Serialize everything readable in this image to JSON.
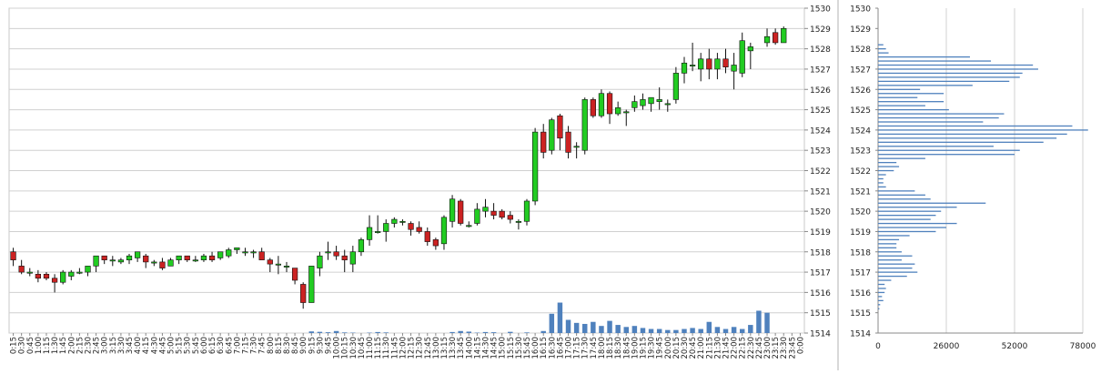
{
  "chart_data": [
    {
      "type": "candlestick",
      "ylim": [
        1514,
        1530
      ],
      "y_ticks": [
        1514,
        1515,
        1516,
        1517,
        1518,
        1519,
        1520,
        1521,
        1522,
        1523,
        1524,
        1525,
        1526,
        1527,
        1528,
        1529,
        1530
      ],
      "grid": "horizontal",
      "colors": {
        "up": "#22cc22",
        "down": "#cc2222",
        "wick": "#111111",
        "volume": "#4f81bd",
        "grid": "#d0d0d0"
      },
      "x_labels": [
        "0:15",
        "0:30",
        "0:45",
        "1:00",
        "1:15",
        "1:30",
        "1:45",
        "2:00",
        "2:15",
        "2:30",
        "2:45",
        "3:00",
        "3:15",
        "3:30",
        "3:45",
        "4:00",
        "4:15",
        "4:30",
        "4:45",
        "5:00",
        "5:15",
        "5:30",
        "5:45",
        "6:00",
        "6:15",
        "6:30",
        "6:45",
        "7:00",
        "7:15",
        "7:30",
        "7:45",
        "8:00",
        "8:15",
        "8:30",
        "8:45",
        "9:00",
        "9:15",
        "9:30",
        "9:45",
        "10:00",
        "10:15",
        "10:30",
        "10:45",
        "11:00",
        "11:15",
        "11:30",
        "11:45",
        "12:00",
        "12:15",
        "12:30",
        "12:45",
        "13:00",
        "13:15",
        "13:30",
        "13:45",
        "14:00",
        "14:15",
        "14:30",
        "14:45",
        "15:00",
        "15:15",
        "15:30",
        "15:45",
        "16:00",
        "16:15",
        "16:30",
        "16:45",
        "17:00",
        "17:15",
        "17:30",
        "17:45",
        "18:00",
        "18:15",
        "18:30",
        "18:45",
        "19:00",
        "19:15",
        "19:30",
        "19:45",
        "20:00",
        "20:15",
        "20:30",
        "20:45",
        "21:00",
        "21:15",
        "21:30",
        "21:45",
        "22:00",
        "22:15",
        "22:30",
        "22:45",
        "23:00",
        "23:15",
        "23:30",
        "23:45",
        "0:00"
      ],
      "candles": [
        {
          "o": 1518.0,
          "h": 1518.2,
          "l": 1517.3,
          "c": 1517.6
        },
        {
          "o": 1517.3,
          "h": 1517.6,
          "l": 1516.9,
          "c": 1517.0
        },
        {
          "o": 1517.0,
          "h": 1517.2,
          "l": 1516.8,
          "c": 1517.0
        },
        {
          "o": 1516.9,
          "h": 1517.1,
          "l": 1516.5,
          "c": 1516.7
        },
        {
          "o": 1516.9,
          "h": 1517.0,
          "l": 1516.6,
          "c": 1516.7
        },
        {
          "o": 1516.7,
          "h": 1516.9,
          "l": 1516.0,
          "c": 1516.5
        },
        {
          "o": 1516.5,
          "h": 1517.1,
          "l": 1516.4,
          "c": 1517.0
        },
        {
          "o": 1516.8,
          "h": 1517.1,
          "l": 1516.6,
          "c": 1517.0
        },
        {
          "o": 1517.0,
          "h": 1517.2,
          "l": 1516.9,
          "c": 1517.0
        },
        {
          "o": 1517.0,
          "h": 1517.3,
          "l": 1516.8,
          "c": 1517.3
        },
        {
          "o": 1517.3,
          "h": 1517.8,
          "l": 1517.0,
          "c": 1517.8
        },
        {
          "o": 1517.8,
          "h": 1517.8,
          "l": 1517.4,
          "c": 1517.6
        },
        {
          "o": 1517.6,
          "h": 1517.8,
          "l": 1517.3,
          "c": 1517.6
        },
        {
          "o": 1517.5,
          "h": 1517.7,
          "l": 1517.4,
          "c": 1517.6
        },
        {
          "o": 1517.6,
          "h": 1517.9,
          "l": 1517.4,
          "c": 1517.8
        },
        {
          "o": 1517.7,
          "h": 1518.0,
          "l": 1517.5,
          "c": 1518.0
        },
        {
          "o": 1517.8,
          "h": 1517.9,
          "l": 1517.2,
          "c": 1517.5
        },
        {
          "o": 1517.5,
          "h": 1517.6,
          "l": 1517.3,
          "c": 1517.5
        },
        {
          "o": 1517.5,
          "h": 1517.7,
          "l": 1517.1,
          "c": 1517.2
        },
        {
          "o": 1517.3,
          "h": 1517.7,
          "l": 1517.3,
          "c": 1517.6
        },
        {
          "o": 1517.6,
          "h": 1517.8,
          "l": 1517.4,
          "c": 1517.8
        },
        {
          "o": 1517.8,
          "h": 1517.8,
          "l": 1517.5,
          "c": 1517.6
        },
        {
          "o": 1517.6,
          "h": 1517.8,
          "l": 1517.5,
          "c": 1517.6
        },
        {
          "o": 1517.6,
          "h": 1517.9,
          "l": 1517.5,
          "c": 1517.8
        },
        {
          "o": 1517.8,
          "h": 1518.0,
          "l": 1517.5,
          "c": 1517.6
        },
        {
          "o": 1517.7,
          "h": 1518.0,
          "l": 1517.6,
          "c": 1518.0
        },
        {
          "o": 1517.8,
          "h": 1518.2,
          "l": 1517.7,
          "c": 1518.1
        },
        {
          "o": 1518.1,
          "h": 1518.2,
          "l": 1517.9,
          "c": 1518.2
        },
        {
          "o": 1518.0,
          "h": 1518.2,
          "l": 1517.8,
          "c": 1518.0
        },
        {
          "o": 1518.0,
          "h": 1518.1,
          "l": 1517.7,
          "c": 1518.0
        },
        {
          "o": 1518.0,
          "h": 1518.2,
          "l": 1517.6,
          "c": 1517.6
        },
        {
          "o": 1517.6,
          "h": 1517.7,
          "l": 1517.0,
          "c": 1517.4
        },
        {
          "o": 1517.4,
          "h": 1517.8,
          "l": 1516.9,
          "c": 1517.4
        },
        {
          "o": 1517.3,
          "h": 1517.5,
          "l": 1517.0,
          "c": 1517.3
        },
        {
          "o": 1517.2,
          "h": 1517.2,
          "l": 1516.4,
          "c": 1516.6
        },
        {
          "o": 1516.4,
          "h": 1516.5,
          "l": 1515.2,
          "c": 1515.5
        },
        {
          "o": 1515.5,
          "h": 1517.3,
          "l": 1515.5,
          "c": 1517.3
        },
        {
          "o": 1517.2,
          "h": 1518.0,
          "l": 1516.8,
          "c": 1517.8
        },
        {
          "o": 1518.0,
          "h": 1518.5,
          "l": 1517.6,
          "c": 1518.0
        },
        {
          "o": 1518.0,
          "h": 1518.3,
          "l": 1517.6,
          "c": 1517.8
        },
        {
          "o": 1517.8,
          "h": 1518.1,
          "l": 1517.0,
          "c": 1517.6
        },
        {
          "o": 1517.4,
          "h": 1518.3,
          "l": 1517.0,
          "c": 1518.0
        },
        {
          "o": 1518.0,
          "h": 1518.7,
          "l": 1517.8,
          "c": 1518.6
        },
        {
          "o": 1518.6,
          "h": 1519.8,
          "l": 1518.3,
          "c": 1519.2
        },
        {
          "o": 1519.0,
          "h": 1519.8,
          "l": 1518.9,
          "c": 1519.0
        },
        {
          "o": 1519.0,
          "h": 1519.6,
          "l": 1518.5,
          "c": 1519.4
        },
        {
          "o": 1519.4,
          "h": 1519.7,
          "l": 1519.2,
          "c": 1519.6
        },
        {
          "o": 1519.5,
          "h": 1519.6,
          "l": 1519.3,
          "c": 1519.5
        },
        {
          "o": 1519.4,
          "h": 1519.5,
          "l": 1518.8,
          "c": 1519.1
        },
        {
          "o": 1519.2,
          "h": 1519.5,
          "l": 1518.9,
          "c": 1519.0
        },
        {
          "o": 1519.0,
          "h": 1519.2,
          "l": 1518.3,
          "c": 1518.5
        },
        {
          "o": 1518.6,
          "h": 1518.7,
          "l": 1518.1,
          "c": 1518.3
        },
        {
          "o": 1518.4,
          "h": 1519.8,
          "l": 1518.1,
          "c": 1519.7
        },
        {
          "o": 1519.5,
          "h": 1520.8,
          "l": 1519.2,
          "c": 1520.6
        },
        {
          "o": 1520.5,
          "h": 1520.6,
          "l": 1519.3,
          "c": 1519.4
        },
        {
          "o": 1519.3,
          "h": 1519.5,
          "l": 1519.2,
          "c": 1519.3
        },
        {
          "o": 1519.4,
          "h": 1520.4,
          "l": 1519.3,
          "c": 1520.1
        },
        {
          "o": 1520.0,
          "h": 1520.6,
          "l": 1519.7,
          "c": 1520.2
        },
        {
          "o": 1520.0,
          "h": 1520.4,
          "l": 1519.6,
          "c": 1519.8
        },
        {
          "o": 1520.0,
          "h": 1520.1,
          "l": 1519.6,
          "c": 1519.7
        },
        {
          "o": 1519.8,
          "h": 1520.0,
          "l": 1519.4,
          "c": 1519.6
        },
        {
          "o": 1519.5,
          "h": 1519.6,
          "l": 1519.1,
          "c": 1519.5
        },
        {
          "o": 1519.5,
          "h": 1520.6,
          "l": 1519.3,
          "c": 1520.5
        },
        {
          "o": 1520.5,
          "h": 1524.1,
          "l": 1520.3,
          "c": 1523.9
        },
        {
          "o": 1523.9,
          "h": 1524.3,
          "l": 1522.6,
          "c": 1522.9
        },
        {
          "o": 1523.0,
          "h": 1524.6,
          "l": 1522.8,
          "c": 1524.5
        },
        {
          "o": 1524.7,
          "h": 1524.8,
          "l": 1523.0,
          "c": 1523.6
        },
        {
          "o": 1523.9,
          "h": 1524.2,
          "l": 1522.6,
          "c": 1522.9
        },
        {
          "o": 1523.2,
          "h": 1523.4,
          "l": 1522.6,
          "c": 1523.2
        },
        {
          "o": 1523.0,
          "h": 1525.6,
          "l": 1522.8,
          "c": 1525.5
        },
        {
          "o": 1525.5,
          "h": 1525.6,
          "l": 1524.6,
          "c": 1524.7
        },
        {
          "o": 1524.7,
          "h": 1526.0,
          "l": 1524.6,
          "c": 1525.8
        },
        {
          "o": 1525.8,
          "h": 1525.9,
          "l": 1524.3,
          "c": 1524.8
        },
        {
          "o": 1524.8,
          "h": 1525.4,
          "l": 1524.7,
          "c": 1525.1
        },
        {
          "o": 1524.9,
          "h": 1525.0,
          "l": 1524.2,
          "c": 1524.9
        },
        {
          "o": 1525.1,
          "h": 1525.7,
          "l": 1524.9,
          "c": 1525.4
        },
        {
          "o": 1525.2,
          "h": 1525.8,
          "l": 1525.0,
          "c": 1525.5
        },
        {
          "o": 1525.3,
          "h": 1525.6,
          "l": 1524.9,
          "c": 1525.6
        },
        {
          "o": 1525.4,
          "h": 1526.1,
          "l": 1525.0,
          "c": 1525.5
        },
        {
          "o": 1525.3,
          "h": 1525.5,
          "l": 1524.9,
          "c": 1525.3
        },
        {
          "o": 1525.5,
          "h": 1527.1,
          "l": 1525.3,
          "c": 1526.8
        },
        {
          "o": 1526.8,
          "h": 1527.6,
          "l": 1526.3,
          "c": 1527.3
        },
        {
          "o": 1527.2,
          "h": 1528.3,
          "l": 1526.9,
          "c": 1527.2
        },
        {
          "o": 1527.0,
          "h": 1527.8,
          "l": 1526.4,
          "c": 1527.5
        },
        {
          "o": 1527.5,
          "h": 1528.0,
          "l": 1526.5,
          "c": 1527.0
        },
        {
          "o": 1527.0,
          "h": 1527.8,
          "l": 1526.5,
          "c": 1527.5
        },
        {
          "o": 1527.5,
          "h": 1528.0,
          "l": 1526.8,
          "c": 1527.1
        },
        {
          "o": 1526.9,
          "h": 1527.8,
          "l": 1526.0,
          "c": 1527.2
        },
        {
          "o": 1526.8,
          "h": 1528.8,
          "l": 1526.6,
          "c": 1528.4
        },
        {
          "o": 1527.9,
          "h": 1528.3,
          "l": 1527.0,
          "c": 1528.1
        },
        null,
        {
          "o": 1528.3,
          "h": 1529.0,
          "l": 1528.1,
          "c": 1528.6
        },
        {
          "o": 1528.8,
          "h": 1529.0,
          "l": 1528.2,
          "c": 1528.3
        },
        {
          "o": 1528.3,
          "h": 1529.1,
          "l": 1528.3,
          "c": 1529.0
        },
        null,
        null
      ],
      "volume": [
        0,
        0,
        0,
        0,
        0,
        0,
        0,
        0,
        0,
        0,
        0,
        0,
        0,
        0,
        0,
        0,
        0,
        0,
        0,
        0,
        0,
        0,
        0,
        0,
        0,
        0,
        0,
        0,
        0,
        0,
        0,
        0,
        0,
        0,
        0,
        0,
        0.08,
        0.06,
        0.04,
        0.1,
        0.03,
        0.02,
        0,
        0.02,
        0.05,
        0.03,
        0,
        0,
        0,
        0,
        0,
        0,
        0,
        0.05,
        0.1,
        0.07,
        0.02,
        0.05,
        0.04,
        0,
        0.06,
        0,
        0.03,
        0,
        0.1,
        0.95,
        1.5,
        0.65,
        0.5,
        0.45,
        0.55,
        0.35,
        0.6,
        0.4,
        0.3,
        0.35,
        0.25,
        0.2,
        0.2,
        0.15,
        0.15,
        0.2,
        0.25,
        0.2,
        0.55,
        0.3,
        0.2,
        0.3,
        0.2,
        0.4,
        1.1,
        1.0,
        0,
        0,
        0,
        0,
        0
      ],
      "volume_note": "Volume bars are drawn in price-axis units above 1514 (no separate volume scale printed)."
    },
    {
      "type": "bar",
      "orientation": "horizontal",
      "title": "",
      "xlim": [
        0,
        78000
      ],
      "x_ticks": [
        0,
        26000,
        52000,
        78000
      ],
      "ylim": [
        1514,
        1530
      ],
      "y_ticks": [
        1514,
        1515,
        1516,
        1517,
        1518,
        1519,
        1520,
        1521,
        1522,
        1523,
        1524,
        1525,
        1526,
        1527,
        1528,
        1529,
        1530
      ],
      "grid": "vertical",
      "color": "#4f81bd",
      "profile": [
        {
          "p": 1515.2,
          "v": 500
        },
        {
          "p": 1515.4,
          "v": 800
        },
        {
          "p": 1515.6,
          "v": 2000
        },
        {
          "p": 1515.8,
          "v": 1500
        },
        {
          "p": 1516.0,
          "v": 2500
        },
        {
          "p": 1516.2,
          "v": 3000
        },
        {
          "p": 1516.4,
          "v": 2500
        },
        {
          "p": 1516.6,
          "v": 5000
        },
        {
          "p": 1516.8,
          "v": 11000
        },
        {
          "p": 1517.0,
          "v": 15000
        },
        {
          "p": 1517.2,
          "v": 13000
        },
        {
          "p": 1517.4,
          "v": 14000
        },
        {
          "p": 1517.6,
          "v": 9000
        },
        {
          "p": 1517.8,
          "v": 13000
        },
        {
          "p": 1518.0,
          "v": 9000
        },
        {
          "p": 1518.2,
          "v": 7000
        },
        {
          "p": 1518.4,
          "v": 7000
        },
        {
          "p": 1518.6,
          "v": 8000
        },
        {
          "p": 1518.8,
          "v": 12000
        },
        {
          "p": 1519.0,
          "v": 22000
        },
        {
          "p": 1519.2,
          "v": 26000
        },
        {
          "p": 1519.4,
          "v": 30000
        },
        {
          "p": 1519.6,
          "v": 20000
        },
        {
          "p": 1519.8,
          "v": 22000
        },
        {
          "p": 1520.0,
          "v": 24000
        },
        {
          "p": 1520.2,
          "v": 30000
        },
        {
          "p": 1520.4,
          "v": 41000
        },
        {
          "p": 1520.6,
          "v": 20000
        },
        {
          "p": 1520.8,
          "v": 18000
        },
        {
          "p": 1521.0,
          "v": 14000
        },
        {
          "p": 1521.2,
          "v": 3000
        },
        {
          "p": 1521.4,
          "v": 2000
        },
        {
          "p": 1521.6,
          "v": 2000
        },
        {
          "p": 1521.8,
          "v": 3000
        },
        {
          "p": 1522.0,
          "v": 6000
        },
        {
          "p": 1522.2,
          "v": 8000
        },
        {
          "p": 1522.4,
          "v": 7000
        },
        {
          "p": 1522.6,
          "v": 18000
        },
        {
          "p": 1522.8,
          "v": 52000
        },
        {
          "p": 1523.0,
          "v": 54000
        },
        {
          "p": 1523.2,
          "v": 44000
        },
        {
          "p": 1523.4,
          "v": 63000
        },
        {
          "p": 1523.6,
          "v": 68000
        },
        {
          "p": 1523.8,
          "v": 72000
        },
        {
          "p": 1524.0,
          "v": 80000
        },
        {
          "p": 1524.2,
          "v": 74000
        },
        {
          "p": 1524.4,
          "v": 40000
        },
        {
          "p": 1524.6,
          "v": 46000
        },
        {
          "p": 1524.8,
          "v": 48000
        },
        {
          "p": 1525.0,
          "v": 27000
        },
        {
          "p": 1525.2,
          "v": 18000
        },
        {
          "p": 1525.4,
          "v": 25000
        },
        {
          "p": 1525.6,
          "v": 15000
        },
        {
          "p": 1525.8,
          "v": 25000
        },
        {
          "p": 1526.0,
          "v": 16000
        },
        {
          "p": 1526.2,
          "v": 36000
        },
        {
          "p": 1526.4,
          "v": 50000
        },
        {
          "p": 1526.6,
          "v": 54000
        },
        {
          "p": 1526.8,
          "v": 55000
        },
        {
          "p": 1527.0,
          "v": 61000
        },
        {
          "p": 1527.2,
          "v": 59000
        },
        {
          "p": 1527.4,
          "v": 43000
        },
        {
          "p": 1527.6,
          "v": 35000
        },
        {
          "p": 1527.8,
          "v": 4000
        },
        {
          "p": 1528.0,
          "v": 3000
        },
        {
          "p": 1528.2,
          "v": 2000
        }
      ]
    }
  ]
}
